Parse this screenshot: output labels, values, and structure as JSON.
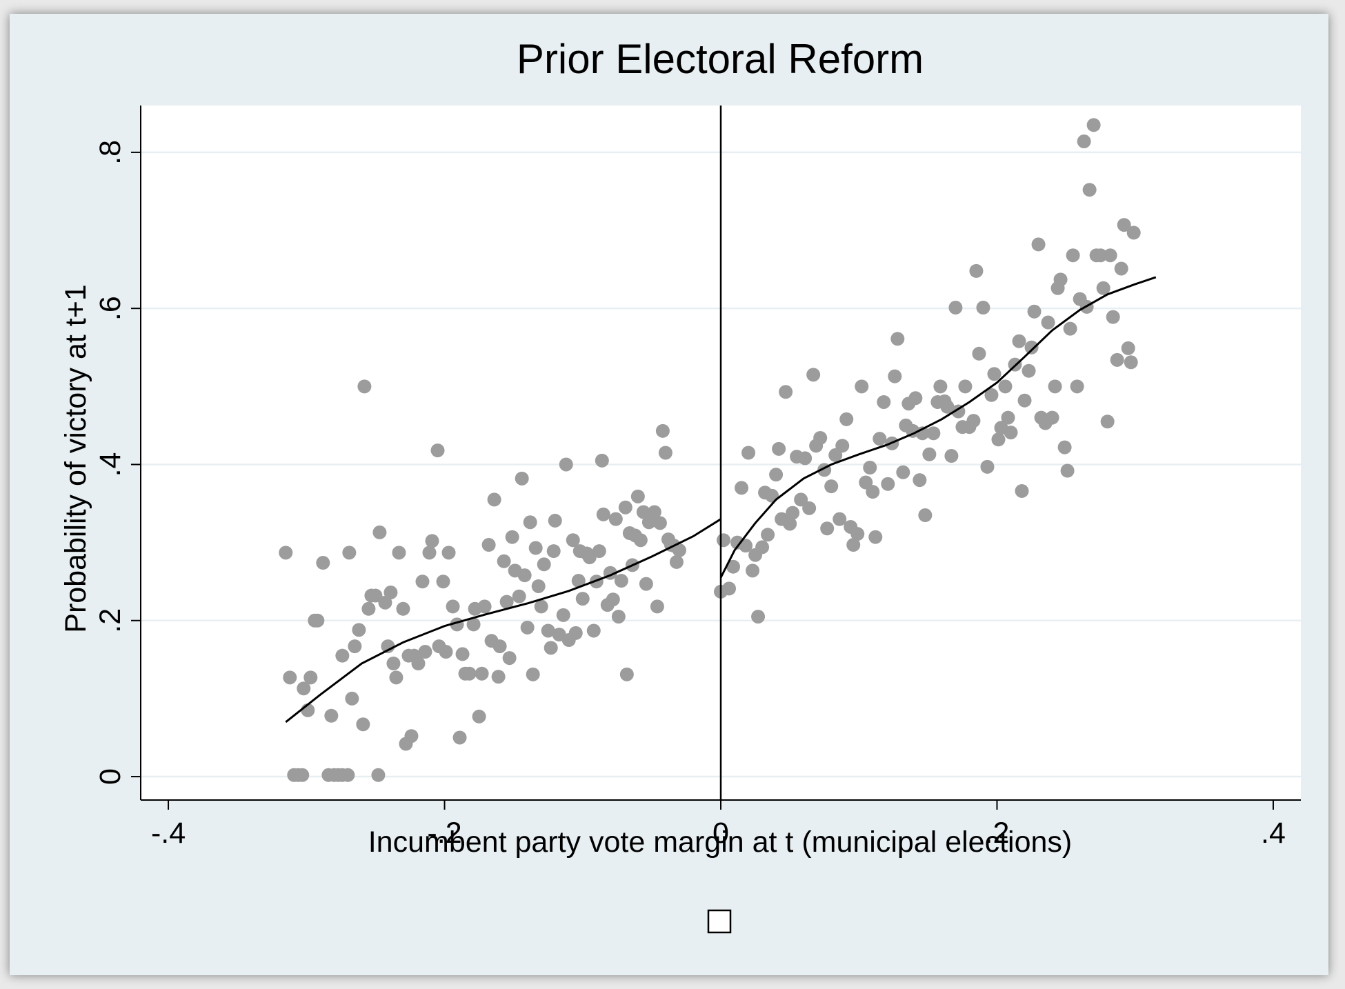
{
  "colors": {
    "outer_background": "#e8eff2",
    "plot_background": "#ffffff",
    "gridline": "#e8eff2",
    "points": "#9c9c9c",
    "fit_line": "#000000",
    "cutoff_line": "#000000"
  },
  "legend_marker": "open-square",
  "chart_data": {
    "type": "scatter",
    "title": "Prior Electoral Reform",
    "xlabel": "Incumbent party vote margin at t (municipal elections)",
    "ylabel": "Probability of victory at t+1",
    "xlim": [
      -0.42,
      0.42
    ],
    "ylim": [
      -0.03,
      0.86
    ],
    "xticks": [
      -0.4,
      -0.2,
      0,
      0.2,
      0.4
    ],
    "xtick_labels": [
      "-.4",
      "-.2",
      "0",
      ".2",
      ".4"
    ],
    "yticks": [
      0,
      0.2,
      0.4,
      0.6,
      0.8
    ],
    "ytick_labels": [
      "0",
      ".2",
      ".4",
      ".6",
      ".8"
    ],
    "grid": "horizontal",
    "cutoff": 0,
    "series": [
      {
        "kind": "points",
        "points": [
          [
            -0.315,
            0.287
          ],
          [
            -0.312,
            0.127
          ],
          [
            -0.309,
            0.002
          ],
          [
            -0.306,
            0.002
          ],
          [
            -0.303,
            0.002
          ],
          [
            -0.302,
            0.113
          ],
          [
            -0.299,
            0.085
          ],
          [
            -0.297,
            0.127
          ],
          [
            -0.294,
            0.2
          ],
          [
            -0.292,
            0.2
          ],
          [
            -0.288,
            0.274
          ],
          [
            -0.284,
            0.002
          ],
          [
            -0.282,
            0.078
          ],
          [
            -0.28,
            0.002
          ],
          [
            -0.277,
            0.002
          ],
          [
            -0.274,
            0.002
          ],
          [
            -0.274,
            0.155
          ],
          [
            -0.27,
            0.002
          ],
          [
            -0.269,
            0.287
          ],
          [
            -0.267,
            0.1
          ],
          [
            -0.265,
            0.167
          ],
          [
            -0.262,
            0.188
          ],
          [
            -0.259,
            0.067
          ],
          [
            -0.258,
            0.5
          ],
          [
            -0.255,
            0.215
          ],
          [
            -0.253,
            0.232
          ],
          [
            -0.25,
            0.232
          ],
          [
            -0.248,
            0.002
          ],
          [
            -0.247,
            0.313
          ],
          [
            -0.243,
            0.223
          ],
          [
            -0.241,
            0.167
          ],
          [
            -0.239,
            0.236
          ],
          [
            -0.237,
            0.145
          ],
          [
            -0.235,
            0.127
          ],
          [
            -0.233,
            0.287
          ],
          [
            -0.23,
            0.215
          ],
          [
            -0.228,
            0.042
          ],
          [
            -0.226,
            0.155
          ],
          [
            -0.224,
            0.052
          ],
          [
            -0.222,
            0.155
          ],
          [
            -0.219,
            0.145
          ],
          [
            -0.216,
            0.25
          ],
          [
            -0.214,
            0.16
          ],
          [
            -0.211,
            0.287
          ],
          [
            -0.209,
            0.302
          ],
          [
            -0.205,
            0.418
          ],
          [
            -0.204,
            0.167
          ],
          [
            -0.201,
            0.25
          ],
          [
            -0.199,
            0.16
          ],
          [
            -0.197,
            0.287
          ],
          [
            -0.194,
            0.218
          ],
          [
            -0.191,
            0.195
          ],
          [
            -0.189,
            0.05
          ],
          [
            -0.187,
            0.157
          ],
          [
            -0.185,
            0.132
          ],
          [
            -0.182,
            0.132
          ],
          [
            -0.179,
            0.195
          ],
          [
            -0.178,
            0.215
          ],
          [
            -0.175,
            0.077
          ],
          [
            -0.173,
            0.132
          ],
          [
            -0.171,
            0.218
          ],
          [
            -0.168,
            0.297
          ],
          [
            -0.166,
            0.174
          ],
          [
            -0.164,
            0.355
          ],
          [
            -0.161,
            0.128
          ],
          [
            -0.16,
            0.167
          ],
          [
            -0.157,
            0.276
          ],
          [
            -0.155,
            0.224
          ],
          [
            -0.153,
            0.152
          ],
          [
            -0.151,
            0.307
          ],
          [
            -0.149,
            0.264
          ],
          [
            -0.146,
            0.231
          ],
          [
            -0.144,
            0.382
          ],
          [
            -0.142,
            0.258
          ],
          [
            -0.14,
            0.191
          ],
          [
            -0.138,
            0.326
          ],
          [
            -0.136,
            0.131
          ],
          [
            -0.134,
            0.293
          ],
          [
            -0.132,
            0.244
          ],
          [
            -0.13,
            0.218
          ],
          [
            -0.128,
            0.272
          ],
          [
            -0.125,
            0.187
          ],
          [
            -0.123,
            0.165
          ],
          [
            -0.121,
            0.289
          ],
          [
            -0.12,
            0.328
          ],
          [
            -0.117,
            0.182
          ],
          [
            -0.114,
            0.207
          ],
          [
            -0.112,
            0.4
          ],
          [
            -0.11,
            0.175
          ],
          [
            -0.107,
            0.303
          ],
          [
            -0.105,
            0.184
          ],
          [
            -0.103,
            0.251
          ],
          [
            -0.102,
            0.289
          ],
          [
            -0.1,
            0.228
          ],
          [
            -0.097,
            0.286
          ],
          [
            -0.095,
            0.281
          ],
          [
            -0.092,
            0.187
          ],
          [
            -0.09,
            0.25
          ],
          [
            -0.088,
            0.289
          ],
          [
            -0.086,
            0.405
          ],
          [
            -0.085,
            0.336
          ],
          [
            -0.082,
            0.22
          ],
          [
            -0.08,
            0.261
          ],
          [
            -0.078,
            0.227
          ],
          [
            -0.076,
            0.33
          ],
          [
            -0.074,
            0.205
          ],
          [
            -0.072,
            0.251
          ],
          [
            -0.069,
            0.345
          ],
          [
            -0.068,
            0.131
          ],
          [
            -0.066,
            0.312
          ],
          [
            -0.064,
            0.271
          ],
          [
            -0.062,
            0.309
          ],
          [
            -0.06,
            0.359
          ],
          [
            -0.058,
            0.303
          ],
          [
            -0.056,
            0.339
          ],
          [
            -0.054,
            0.247
          ],
          [
            -0.052,
            0.326
          ],
          [
            -0.05,
            0.33
          ],
          [
            -0.048,
            0.339
          ],
          [
            -0.046,
            0.218
          ],
          [
            -0.044,
            0.325
          ],
          [
            -0.042,
            0.443
          ],
          [
            -0.04,
            0.415
          ],
          [
            -0.038,
            0.304
          ],
          [
            -0.036,
            0.297
          ],
          [
            -0.034,
            0.296
          ],
          [
            -0.032,
            0.275
          ],
          [
            -0.03,
            0.29
          ],
          [
            0.0,
            0.237
          ],
          [
            0.002,
            0.303
          ],
          [
            0.006,
            0.241
          ],
          [
            0.009,
            0.269
          ],
          [
            0.012,
            0.3
          ],
          [
            0.015,
            0.37
          ],
          [
            0.018,
            0.296
          ],
          [
            0.02,
            0.415
          ],
          [
            0.023,
            0.264
          ],
          [
            0.025,
            0.284
          ],
          [
            0.027,
            0.205
          ],
          [
            0.03,
            0.294
          ],
          [
            0.032,
            0.364
          ],
          [
            0.034,
            0.31
          ],
          [
            0.037,
            0.36
          ],
          [
            0.04,
            0.387
          ],
          [
            0.042,
            0.42
          ],
          [
            0.044,
            0.33
          ],
          [
            0.047,
            0.493
          ],
          [
            0.05,
            0.324
          ],
          [
            0.052,
            0.338
          ],
          [
            0.055,
            0.41
          ],
          [
            0.058,
            0.355
          ],
          [
            0.061,
            0.408
          ],
          [
            0.064,
            0.344
          ],
          [
            0.067,
            0.515
          ],
          [
            0.069,
            0.424
          ],
          [
            0.072,
            0.434
          ],
          [
            0.075,
            0.393
          ],
          [
            0.077,
            0.318
          ],
          [
            0.08,
            0.372
          ],
          [
            0.083,
            0.412
          ],
          [
            0.086,
            0.33
          ],
          [
            0.088,
            0.424
          ],
          [
            0.091,
            0.458
          ],
          [
            0.094,
            0.32
          ],
          [
            0.096,
            0.297
          ],
          [
            0.099,
            0.311
          ],
          [
            0.102,
            0.5
          ],
          [
            0.105,
            0.377
          ],
          [
            0.108,
            0.396
          ],
          [
            0.11,
            0.365
          ],
          [
            0.112,
            0.307
          ],
          [
            0.115,
            0.433
          ],
          [
            0.118,
            0.48
          ],
          [
            0.121,
            0.375
          ],
          [
            0.124,
            0.427
          ],
          [
            0.126,
            0.513
          ],
          [
            0.128,
            0.561
          ],
          [
            0.132,
            0.39
          ],
          [
            0.134,
            0.45
          ],
          [
            0.136,
            0.478
          ],
          [
            0.139,
            0.443
          ],
          [
            0.141,
            0.485
          ],
          [
            0.144,
            0.38
          ],
          [
            0.146,
            0.44
          ],
          [
            0.148,
            0.335
          ],
          [
            0.151,
            0.413
          ],
          [
            0.154,
            0.44
          ],
          [
            0.157,
            0.48
          ],
          [
            0.159,
            0.5
          ],
          [
            0.162,
            0.481
          ],
          [
            0.164,
            0.474
          ],
          [
            0.167,
            0.411
          ],
          [
            0.17,
            0.601
          ],
          [
            0.172,
            0.468
          ],
          [
            0.175,
            0.448
          ],
          [
            0.177,
            0.5
          ],
          [
            0.18,
            0.448
          ],
          [
            0.183,
            0.456
          ],
          [
            0.185,
            0.648
          ],
          [
            0.187,
            0.542
          ],
          [
            0.19,
            0.601
          ],
          [
            0.193,
            0.397
          ],
          [
            0.196,
            0.489
          ],
          [
            0.198,
            0.516
          ],
          [
            0.201,
            0.432
          ],
          [
            0.203,
            0.447
          ],
          [
            0.206,
            0.5
          ],
          [
            0.208,
            0.46
          ],
          [
            0.21,
            0.441
          ],
          [
            0.213,
            0.528
          ],
          [
            0.216,
            0.558
          ],
          [
            0.218,
            0.366
          ],
          [
            0.22,
            0.482
          ],
          [
            0.223,
            0.52
          ],
          [
            0.225,
            0.55
          ],
          [
            0.227,
            0.596
          ],
          [
            0.23,
            0.682
          ],
          [
            0.232,
            0.46
          ],
          [
            0.235,
            0.453
          ],
          [
            0.237,
            0.582
          ],
          [
            0.24,
            0.46
          ],
          [
            0.242,
            0.5
          ],
          [
            0.244,
            0.626
          ],
          [
            0.246,
            0.637
          ],
          [
            0.249,
            0.422
          ],
          [
            0.251,
            0.392
          ],
          [
            0.253,
            0.574
          ],
          [
            0.255,
            0.668
          ],
          [
            0.258,
            0.5
          ],
          [
            0.26,
            0.612
          ],
          [
            0.263,
            0.814
          ],
          [
            0.265,
            0.602
          ],
          [
            0.267,
            0.752
          ],
          [
            0.27,
            0.835
          ],
          [
            0.272,
            0.668
          ],
          [
            0.275,
            0.668
          ],
          [
            0.277,
            0.626
          ],
          [
            0.28,
            0.455
          ],
          [
            0.282,
            0.668
          ],
          [
            0.284,
            0.589
          ],
          [
            0.287,
            0.534
          ],
          [
            0.29,
            0.651
          ],
          [
            0.292,
            0.707
          ],
          [
            0.295,
            0.549
          ],
          [
            0.297,
            0.531
          ],
          [
            0.299,
            0.697
          ]
        ]
      },
      {
        "kind": "fit-line-left",
        "points": [
          [
            -0.315,
            0.07
          ],
          [
            -0.29,
            0.105
          ],
          [
            -0.26,
            0.145
          ],
          [
            -0.23,
            0.172
          ],
          [
            -0.2,
            0.193
          ],
          [
            -0.17,
            0.208
          ],
          [
            -0.14,
            0.222
          ],
          [
            -0.11,
            0.238
          ],
          [
            -0.08,
            0.258
          ],
          [
            -0.05,
            0.282
          ],
          [
            -0.02,
            0.308
          ],
          [
            0.0,
            0.33
          ]
        ]
      },
      {
        "kind": "fit-line-right",
        "points": [
          [
            0.0,
            0.255
          ],
          [
            0.01,
            0.29
          ],
          [
            0.025,
            0.325
          ],
          [
            0.04,
            0.355
          ],
          [
            0.06,
            0.382
          ],
          [
            0.08,
            0.4
          ],
          [
            0.1,
            0.413
          ],
          [
            0.12,
            0.425
          ],
          [
            0.14,
            0.44
          ],
          [
            0.16,
            0.458
          ],
          [
            0.18,
            0.48
          ],
          [
            0.2,
            0.505
          ],
          [
            0.22,
            0.538
          ],
          [
            0.24,
            0.572
          ],
          [
            0.26,
            0.598
          ],
          [
            0.28,
            0.618
          ],
          [
            0.3,
            0.631
          ],
          [
            0.315,
            0.64
          ]
        ]
      }
    ]
  }
}
